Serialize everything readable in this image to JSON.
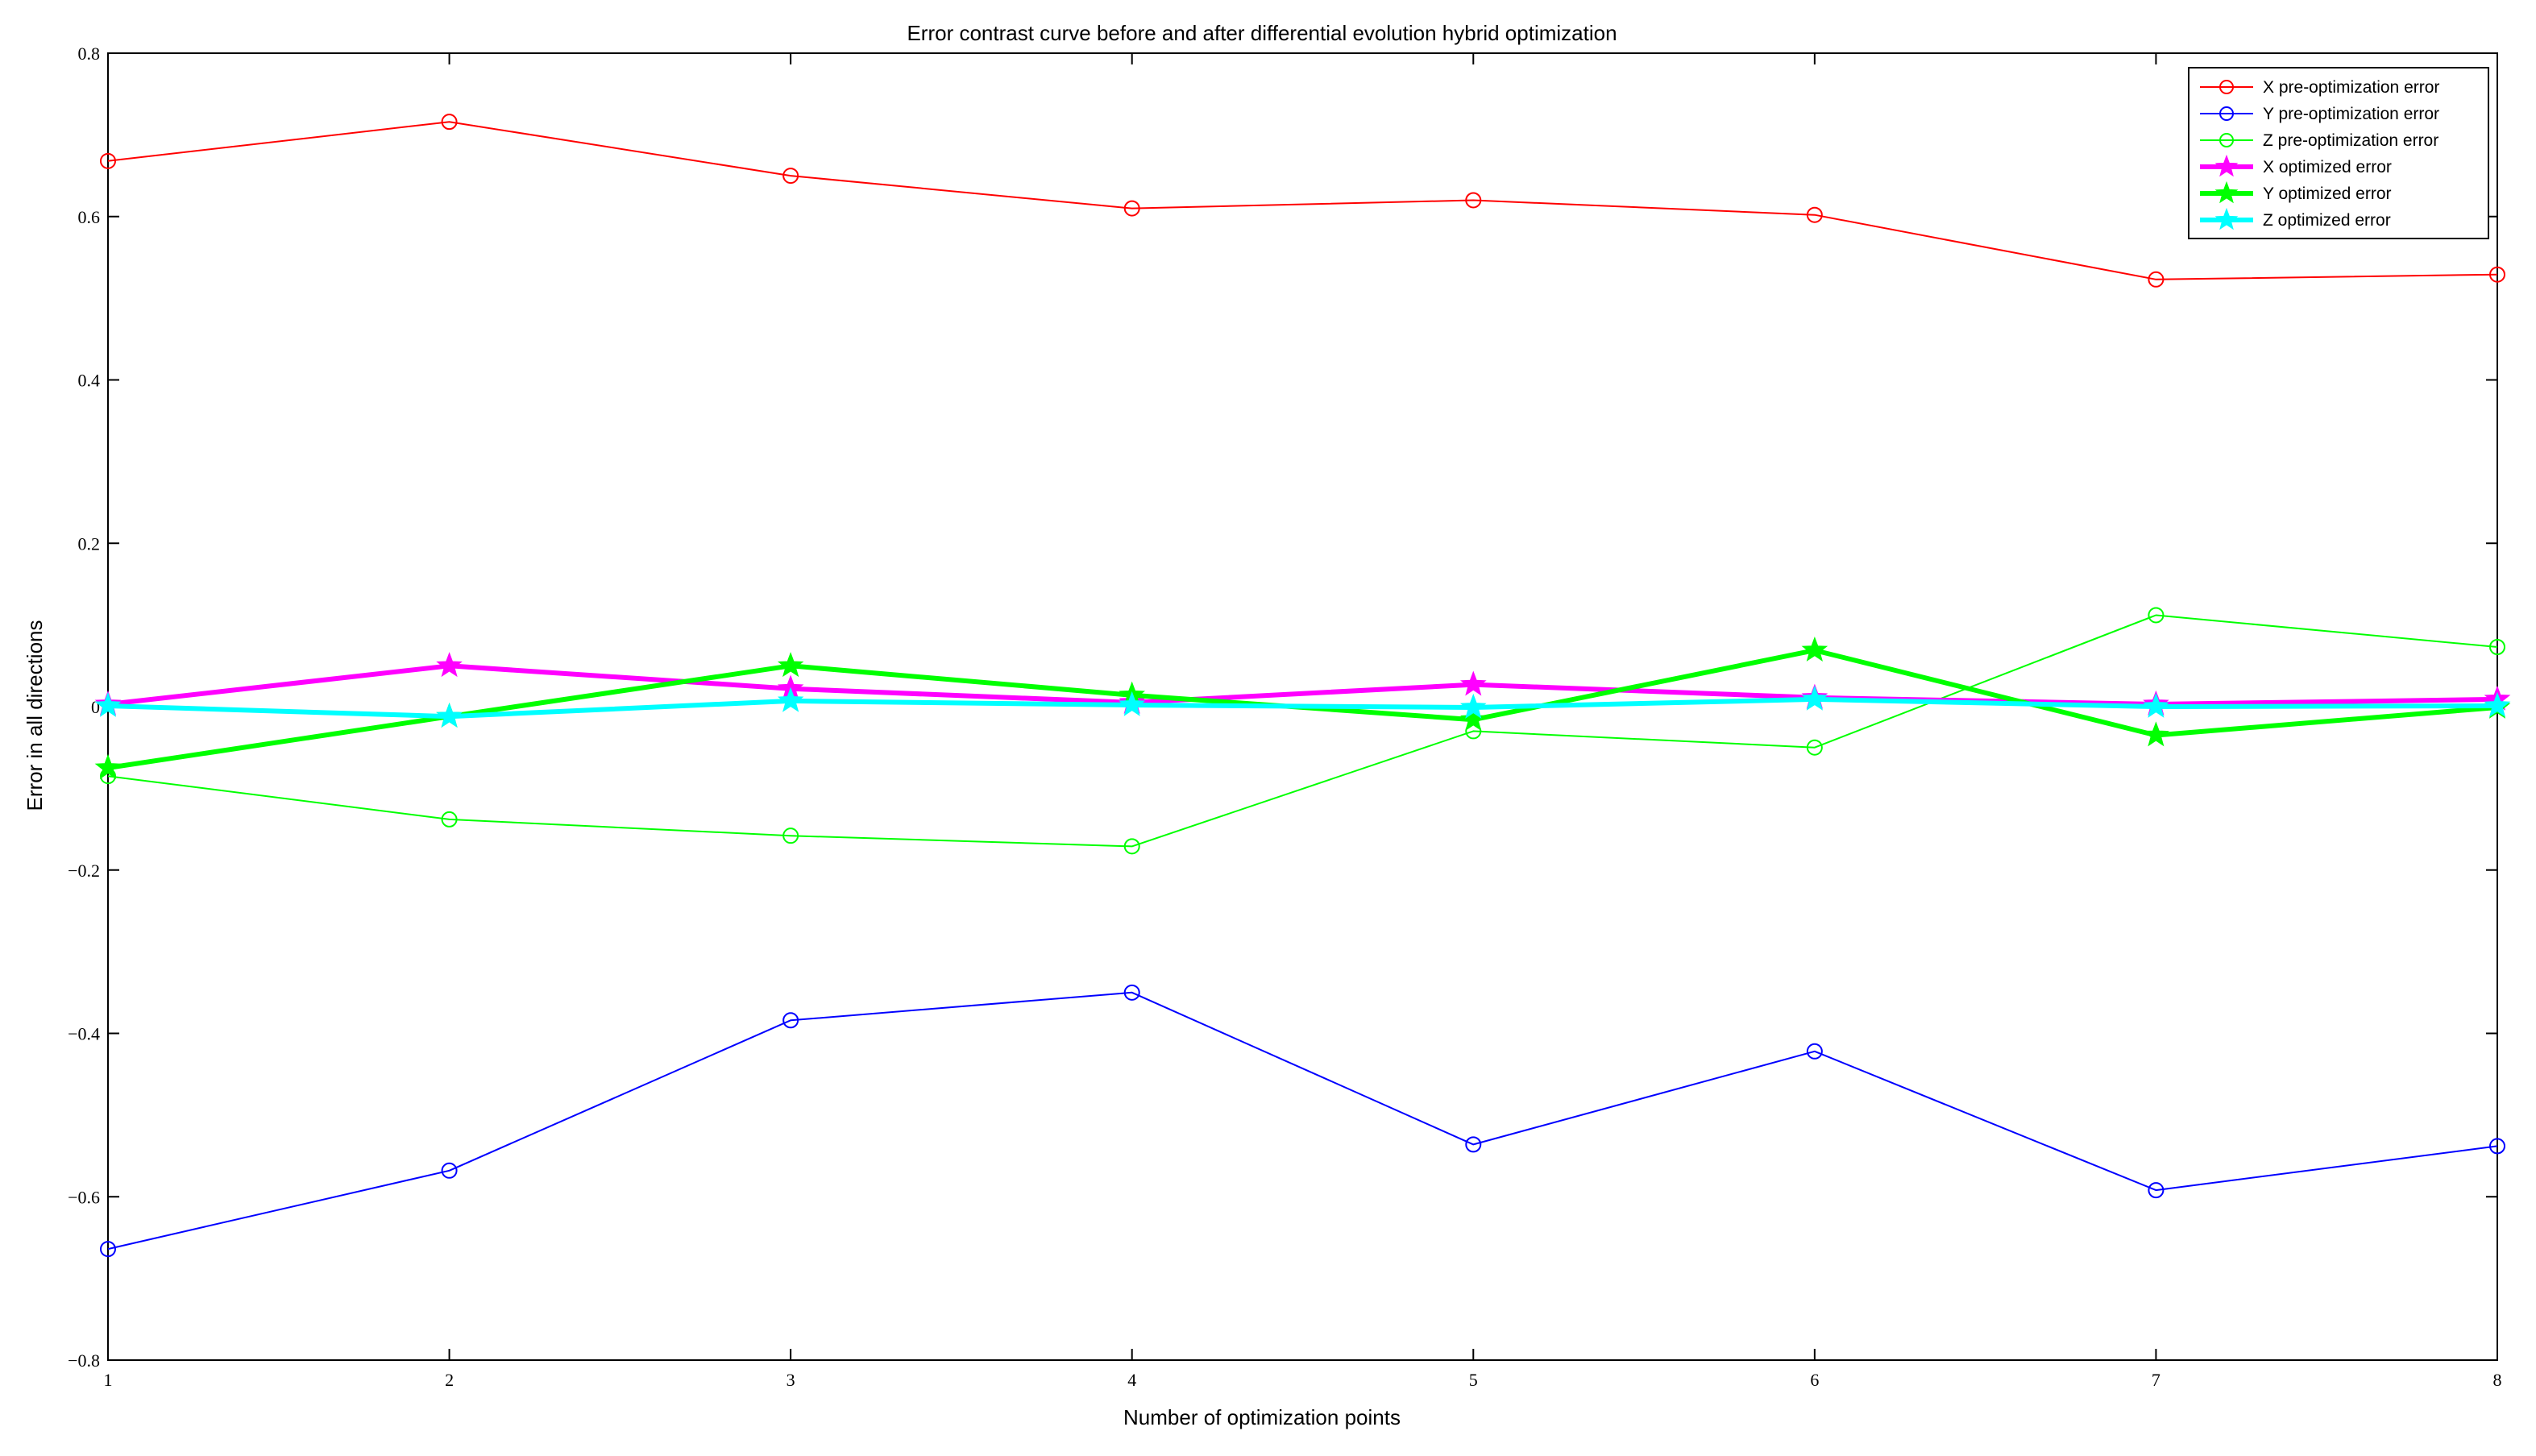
{
  "chart_data": {
    "type": "line",
    "title": "Error contrast curve before and after differential evolution hybrid optimization",
    "xlabel": "Number of optimization points",
    "ylabel": "Error in all directions",
    "xlim": [
      1,
      8
    ],
    "ylim": [
      -0.8,
      0.8
    ],
    "xticks": [
      1,
      2,
      3,
      4,
      5,
      6,
      7,
      8
    ],
    "xtick_labels": [
      "1",
      "2",
      "3",
      "4",
      "5",
      "6",
      "7",
      "8"
    ],
    "yticks": [
      -0.8,
      -0.6,
      -0.4,
      -0.2,
      0,
      0.2,
      0.4,
      0.6,
      0.8
    ],
    "ytick_labels": [
      "−0.8",
      "−0.6",
      "−0.4",
      "−0.2",
      "0",
      "0.2",
      "0.4",
      "0.6",
      "0.8"
    ],
    "grid": false,
    "legend_position": "top-right",
    "x": [
      1,
      2,
      3,
      4,
      5,
      6,
      7,
      8
    ],
    "series": [
      {
        "name": "X pre-optimization error",
        "color": "#ff0000",
        "marker": "circle",
        "width": "thin",
        "values": [
          0.668,
          0.716,
          0.65,
          0.61,
          0.62,
          0.602,
          0.523,
          0.529
        ]
      },
      {
        "name": "Y pre-optimization error",
        "color": "#0000ff",
        "marker": "circle",
        "width": "thin",
        "values": [
          -0.664,
          -0.568,
          -0.384,
          -0.35,
          -0.536,
          -0.422,
          -0.592,
          -0.538
        ]
      },
      {
        "name": "Z pre-optimization error",
        "color": "#00ff00",
        "marker": "circle",
        "width": "thin",
        "values": [
          -0.085,
          -0.138,
          -0.158,
          -0.171,
          -0.03,
          -0.05,
          0.112,
          0.073
        ]
      },
      {
        "name": "X optimized error",
        "color": "#ff00ff",
        "marker": "star",
        "width": "thick",
        "values": [
          0.003,
          0.05,
          0.022,
          0.005,
          0.027,
          0.011,
          0.003,
          0.009
        ]
      },
      {
        "name": "Y optimized error",
        "color": "#00ff00",
        "marker": "star",
        "width": "thick",
        "values": [
          -0.075,
          -0.012,
          0.05,
          0.014,
          -0.016,
          0.069,
          -0.035,
          -0.001
        ]
      },
      {
        "name": "Z optimized error",
        "color": "#00ffff",
        "marker": "star",
        "width": "thick",
        "values": [
          0.001,
          -0.012,
          0.007,
          0.002,
          -0.001,
          0.009,
          0.0,
          0.001
        ]
      }
    ]
  }
}
